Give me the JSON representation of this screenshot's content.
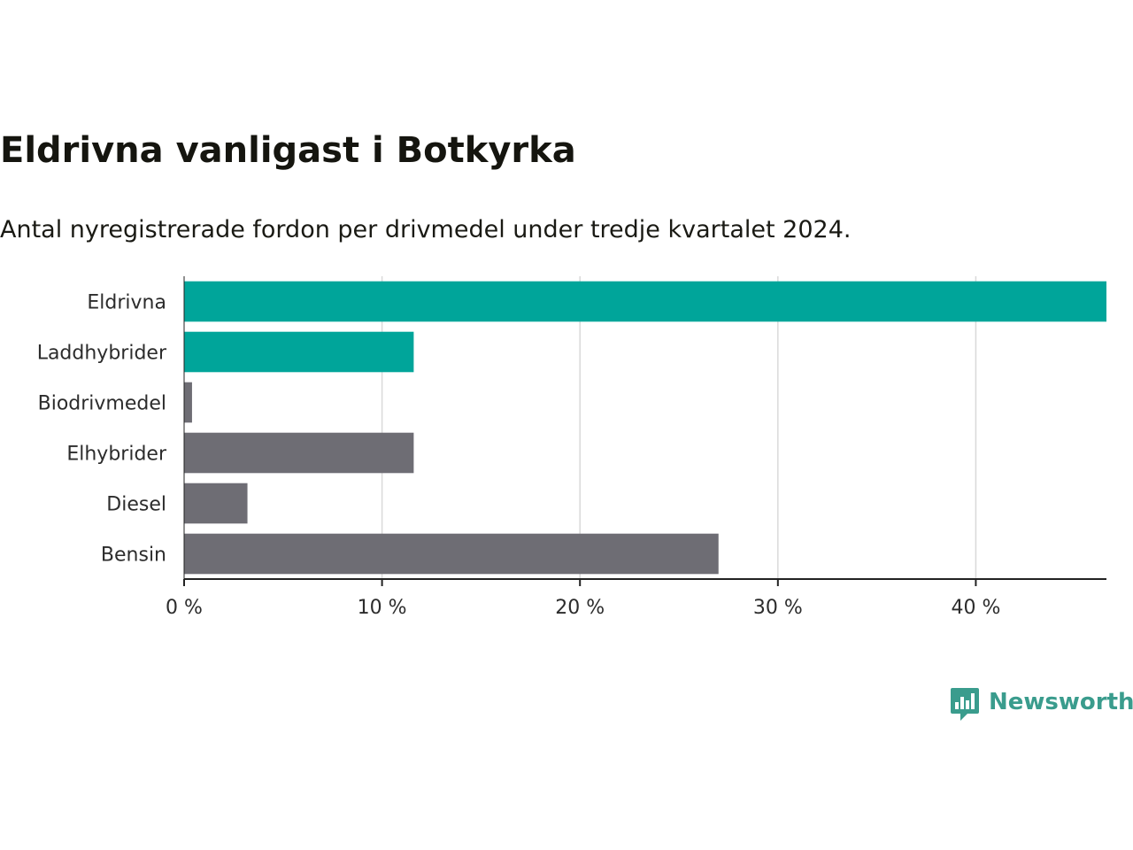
{
  "title": "Eldrivna vanligast i Botkyrka",
  "subtitle": "Antal nyregistrerade fordon per drivmedel under tredje kvartalet 2024.",
  "brand": {
    "name": "Newsworthy",
    "icon": "bar-chart-speech-bubble-icon",
    "color": "#3a9c8d"
  },
  "chart_data": {
    "type": "bar",
    "orientation": "horizontal",
    "categories": [
      "Eldrivna",
      "Laddhybrider",
      "Biodrivmedel",
      "Elhybrider",
      "Diesel",
      "Bensin"
    ],
    "values": [
      46.6,
      11.6,
      0.4,
      11.6,
      3.2,
      27.0
    ],
    "unit": "%",
    "highlighted": [
      true,
      true,
      false,
      false,
      false,
      false
    ],
    "colors": {
      "highlight": "#00a59a",
      "default": "#6e6d74",
      "grid": "#d9d9d9",
      "axis": "#222222"
    },
    "xlim": [
      0,
      46.6
    ],
    "xticks": [
      0,
      10,
      20,
      30,
      40
    ],
    "xtick_labels": [
      "0 %",
      "10 %",
      "20 %",
      "30 %",
      "40 %"
    ],
    "grid": true,
    "legend": "none"
  }
}
